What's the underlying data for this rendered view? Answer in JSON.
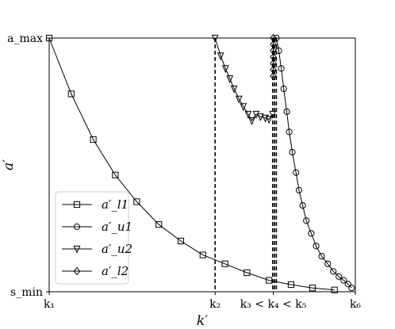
{
  "chart_data": {
    "type": "line",
    "title": "",
    "xlabel": "k′",
    "ylabel": "a′",
    "xlim": [
      1,
      6
    ],
    "ylim": [
      0,
      1
    ],
    "x_ticks": [
      {
        "x": 1,
        "label": "k₁"
      },
      {
        "x": 3.71,
        "label": "k₂"
      },
      {
        "x": 4.66,
        "label": "k₃ < k₄ < k₅"
      },
      {
        "x": 6,
        "label": "k₆"
      }
    ],
    "y_ticks": [
      {
        "y": 0,
        "label": "s_min"
      },
      {
        "y": 1,
        "label": "a_max"
      }
    ],
    "vlines": [
      3.71,
      4.65,
      4.68,
      4.71
    ],
    "grid": false,
    "legend": {
      "position": "lower-left"
    },
    "series": [
      {
        "name": "a′_l1",
        "marker": "square",
        "x": [
          1.0,
          1.36,
          1.72,
          2.08,
          2.43,
          2.79,
          3.15,
          3.51,
          3.87,
          4.23,
          4.59,
          4.95,
          5.3,
          5.66
        ],
        "y": [
          1.0,
          0.78,
          0.6,
          0.46,
          0.355,
          0.265,
          0.2,
          0.145,
          0.11,
          0.075,
          0.045,
          0.028,
          0.015,
          0.007
        ]
      },
      {
        "name": "a′_u1",
        "marker": "circle",
        "x": [
          4.71,
          4.75,
          4.79,
          4.83,
          4.88,
          4.92,
          4.97,
          5.03,
          5.08,
          5.14,
          5.2,
          5.28,
          5.36,
          5.45,
          5.55,
          5.64,
          5.73,
          5.81,
          5.88,
          5.94
        ],
        "y": [
          1.0,
          0.95,
          0.88,
          0.8,
          0.71,
          0.63,
          0.55,
          0.47,
          0.4,
          0.34,
          0.28,
          0.23,
          0.18,
          0.14,
          0.11,
          0.08,
          0.06,
          0.045,
          0.03,
          0.015
        ]
      },
      {
        "name": "a′_u2",
        "marker": "triangle-down",
        "x": [
          3.71,
          3.8,
          3.88,
          3.95,
          4.02,
          4.1,
          4.17,
          4.25,
          4.31,
          4.38,
          4.45,
          4.53,
          4.59,
          4.65
        ],
        "y": [
          1.0,
          0.93,
          0.88,
          0.84,
          0.8,
          0.76,
          0.73,
          0.7,
          0.675,
          0.7,
          0.69,
          0.685,
          0.68,
          0.7
        ]
      },
      {
        "name": "a′_l2",
        "marker": "diamond",
        "x": [
          4.66,
          4.66,
          4.66,
          4.66,
          4.66,
          4.66,
          4.66
        ],
        "y": [
          1.0,
          0.975,
          0.95,
          0.925,
          0.9,
          0.875,
          0.85
        ]
      }
    ]
  }
}
